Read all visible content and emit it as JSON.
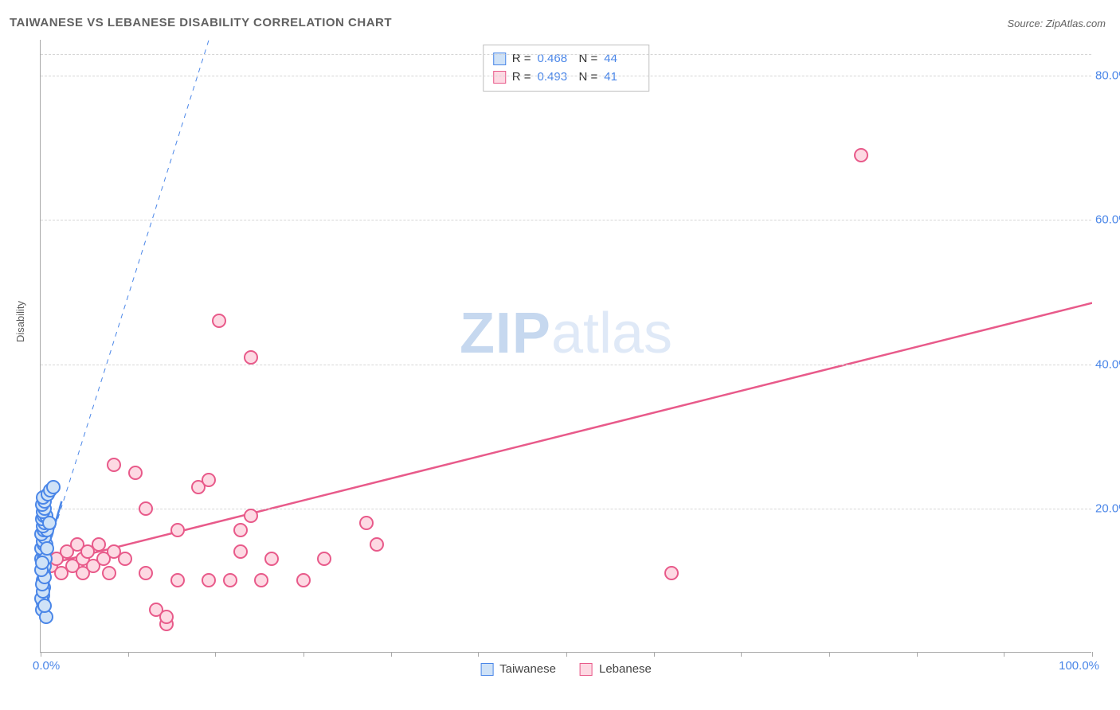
{
  "title": "TAIWANESE VS LEBANESE DISABILITY CORRELATION CHART",
  "source": "Source: ZipAtlas.com",
  "ylabel": "Disability",
  "watermark": {
    "bold": "ZIP",
    "light": "atlas"
  },
  "chart": {
    "type": "scatter",
    "xlim": [
      0,
      100
    ],
    "ylim": [
      0,
      85
    ],
    "x_min_label": "0.0%",
    "x_max_label": "100.0%",
    "yticks": [
      20,
      40,
      60,
      80
    ],
    "ytick_labels": [
      "20.0%",
      "40.0%",
      "60.0%",
      "80.0%"
    ],
    "xtick_positions": [
      0,
      8.3,
      16.6,
      25,
      33.3,
      41.6,
      50,
      58.3,
      66.6,
      75,
      83.3,
      91.6,
      100
    ],
    "background_color": "#ffffff",
    "grid_color": "#d6d6d6",
    "title_color": "#616161",
    "title_fontsize": 15,
    "label_color": "#4a86e8",
    "tick_fontsize": 15,
    "point_radius": 9,
    "trend_line_width_main": 2.5,
    "trend_line_width_dash": 1,
    "series": {
      "taiwanese": {
        "label": "Taiwanese",
        "r": "0.468",
        "n": "44",
        "fill": "#cfe2f7",
        "stroke": "#4a86e8",
        "trend_solid": {
          "x1": 0,
          "y1": 11,
          "x2": 2,
          "y2": 21
        },
        "trend_dash": {
          "x1": 0,
          "y1": 11,
          "x2": 16,
          "y2": 85
        },
        "points": [
          [
            0.2,
            7
          ],
          [
            0.2,
            8
          ],
          [
            0.3,
            9
          ],
          [
            0.2,
            10
          ],
          [
            0.3,
            11
          ],
          [
            0.2,
            12
          ],
          [
            0.4,
            12
          ],
          [
            0.1,
            13
          ],
          [
            0.3,
            13
          ],
          [
            0.2,
            14
          ],
          [
            0.4,
            14
          ],
          [
            0.1,
            14.5
          ],
          [
            0.3,
            15
          ],
          [
            0.5,
            15
          ],
          [
            0.2,
            15.5
          ],
          [
            0.4,
            16
          ],
          [
            0.1,
            16.5
          ],
          [
            0.3,
            17
          ],
          [
            0.6,
            17
          ],
          [
            0.2,
            17.5
          ],
          [
            0.4,
            18
          ],
          [
            0.15,
            18.5
          ],
          [
            0.3,
            19
          ],
          [
            0.5,
            19
          ],
          [
            0.2,
            19.5
          ],
          [
            0.35,
            20
          ],
          [
            0.15,
            20.5
          ],
          [
            0.4,
            21
          ],
          [
            0.25,
            21.5
          ],
          [
            0.15,
            6
          ],
          [
            0.1,
            7.5
          ],
          [
            0.25,
            8.5
          ],
          [
            0.15,
            9.5
          ],
          [
            0.35,
            10.5
          ],
          [
            0.1,
            11.5
          ],
          [
            0.45,
            13
          ],
          [
            0.15,
            12.5
          ],
          [
            0.7,
            22
          ],
          [
            0.9,
            22.5
          ],
          [
            1.2,
            23
          ],
          [
            0.5,
            5
          ],
          [
            0.4,
            6.5
          ],
          [
            0.6,
            14.5
          ],
          [
            0.8,
            18
          ]
        ]
      },
      "lebanese": {
        "label": "Lebanese",
        "r": "0.493",
        "n": "41",
        "fill": "#fdd9e3",
        "stroke": "#e85a8a",
        "trend_solid": {
          "x1": 0,
          "y1": 12,
          "x2": 100,
          "y2": 48.5
        },
        "points": [
          [
            1,
            12
          ],
          [
            1.5,
            13
          ],
          [
            2,
            11
          ],
          [
            2.5,
            14
          ],
          [
            3,
            12
          ],
          [
            3.5,
            15
          ],
          [
            4,
            11
          ],
          [
            4,
            13
          ],
          [
            4.5,
            14
          ],
          [
            5,
            12
          ],
          [
            5.5,
            15
          ],
          [
            6,
            13
          ],
          [
            6.5,
            11
          ],
          [
            7,
            14
          ],
          [
            8,
            13
          ],
          [
            9,
            25
          ],
          [
            10,
            11
          ],
          [
            10,
            20
          ],
          [
            11,
            6
          ],
          [
            12,
            4
          ],
          [
            12,
            5
          ],
          [
            13,
            10
          ],
          [
            13,
            17
          ],
          [
            15,
            23
          ],
          [
            16,
            24
          ],
          [
            16,
            10
          ],
          [
            17,
            46
          ],
          [
            18,
            10
          ],
          [
            19,
            14
          ],
          [
            19,
            17
          ],
          [
            20,
            19
          ],
          [
            20,
            41
          ],
          [
            21,
            10
          ],
          [
            22,
            13
          ],
          [
            25,
            10
          ],
          [
            27,
            13
          ],
          [
            31,
            18
          ],
          [
            32,
            15
          ],
          [
            60,
            11
          ],
          [
            78,
            69
          ],
          [
            7,
            26
          ]
        ]
      }
    }
  },
  "legend_top_labels": {
    "r_prefix": "R = ",
    "n_prefix": "N = "
  }
}
